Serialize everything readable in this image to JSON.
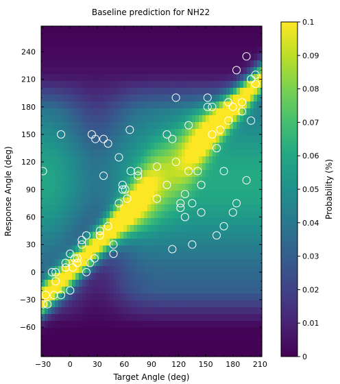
{
  "chart_data": {
    "type": "heatmap",
    "title": "Baseline prediction for NH22",
    "xlabel": "Target Angle (deg)",
    "ylabel": "Response Angle (deg)",
    "xlim": [
      -32,
      212
    ],
    "ylim": [
      -92,
      268
    ],
    "x_ticks": [
      -30,
      0,
      30,
      60,
      90,
      120,
      150,
      180,
      210
    ],
    "x_tick_labels": [
      "−30",
      "0",
      "30",
      "60",
      "90",
      "120",
      "150",
      "180",
      "210"
    ],
    "y_ticks": [
      -60,
      -30,
      0,
      30,
      60,
      90,
      120,
      150,
      180,
      210,
      240
    ],
    "y_tick_labels": [
      "−60",
      "−30",
      "0",
      "30",
      "60",
      "90",
      "120",
      "150",
      "180",
      "210",
      "240"
    ],
    "colormap": "viridis",
    "colorbar": {
      "label": "Probability (%)",
      "range": [
        0,
        0.1
      ],
      "ticks": [
        0,
        0.01,
        0.02,
        0.03,
        0.04,
        0.05,
        0.06,
        0.07,
        0.08,
        0.09,
        0.1
      ],
      "tick_labels": [
        "0",
        "0.01",
        "0.02",
        "0.03",
        "0.04",
        "0.05",
        "0.06",
        "0.07",
        "0.08",
        "0.09",
        "0.1"
      ]
    },
    "scatter_points": [
      {
        "x": -30,
        "y": 110
      },
      {
        "x": -30,
        "y": -35
      },
      {
        "x": -27,
        "y": -25
      },
      {
        "x": -25,
        "y": -35
      },
      {
        "x": -20,
        "y": 0
      },
      {
        "x": -18,
        "y": -25
      },
      {
        "x": -16,
        "y": 0
      },
      {
        "x": -16,
        "y": -10
      },
      {
        "x": -10,
        "y": 150
      },
      {
        "x": -10,
        "y": -25
      },
      {
        "x": -5,
        "y": 10
      },
      {
        "x": -5,
        "y": 5
      },
      {
        "x": 0,
        "y": 20
      },
      {
        "x": 0,
        "y": -20
      },
      {
        "x": 3,
        "y": 5
      },
      {
        "x": 5,
        "y": 15
      },
      {
        "x": 8,
        "y": 15
      },
      {
        "x": 8,
        "y": 10
      },
      {
        "x": 13,
        "y": 30
      },
      {
        "x": 13,
        "y": 35
      },
      {
        "x": 18,
        "y": 40
      },
      {
        "x": 18,
        "y": 0
      },
      {
        "x": 22,
        "y": 10
      },
      {
        "x": 24,
        "y": 150
      },
      {
        "x": 28,
        "y": 145
      },
      {
        "x": 27,
        "y": 15
      },
      {
        "x": 33,
        "y": 45
      },
      {
        "x": 33,
        "y": 40
      },
      {
        "x": 37,
        "y": 105
      },
      {
        "x": 37,
        "y": 145
      },
      {
        "x": 42,
        "y": 140
      },
      {
        "x": 42,
        "y": 50
      },
      {
        "x": 48,
        "y": 30
      },
      {
        "x": 48,
        "y": 20
      },
      {
        "x": 54,
        "y": 125
      },
      {
        "x": 54,
        "y": 75
      },
      {
        "x": 58,
        "y": 95
      },
      {
        "x": 58,
        "y": 90
      },
      {
        "x": 61,
        "y": 90
      },
      {
        "x": 63,
        "y": 80
      },
      {
        "x": 66,
        "y": 155
      },
      {
        "x": 67,
        "y": 110
      },
      {
        "x": 75,
        "y": 110
      },
      {
        "x": 75,
        "y": 105
      },
      {
        "x": 96,
        "y": 115
      },
      {
        "x": 96,
        "y": 80
      },
      {
        "x": 107,
        "y": 150
      },
      {
        "x": 107,
        "y": 95
      },
      {
        "x": 113,
        "y": 145
      },
      {
        "x": 113,
        "y": 25
      },
      {
        "x": 117,
        "y": 190
      },
      {
        "x": 117,
        "y": 120
      },
      {
        "x": 122,
        "y": 75
      },
      {
        "x": 122,
        "y": 70
      },
      {
        "x": 127,
        "y": 85
      },
      {
        "x": 127,
        "y": 60
      },
      {
        "x": 131,
        "y": 160
      },
      {
        "x": 131,
        "y": 110
      },
      {
        "x": 135,
        "y": 75
      },
      {
        "x": 135,
        "y": 30
      },
      {
        "x": 141,
        "y": 110
      },
      {
        "x": 145,
        "y": 95
      },
      {
        "x": 145,
        "y": 65
      },
      {
        "x": 152,
        "y": 190
      },
      {
        "x": 152,
        "y": 180
      },
      {
        "x": 157,
        "y": 180
      },
      {
        "x": 157,
        "y": 150
      },
      {
        "x": 162,
        "y": 135
      },
      {
        "x": 162,
        "y": 40
      },
      {
        "x": 166,
        "y": 155
      },
      {
        "x": 170,
        "y": 110
      },
      {
        "x": 170,
        "y": 50
      },
      {
        "x": 175,
        "y": 185
      },
      {
        "x": 175,
        "y": 165
      },
      {
        "x": 180,
        "y": 180
      },
      {
        "x": 180,
        "y": 65
      },
      {
        "x": 184,
        "y": 220
      },
      {
        "x": 184,
        "y": 75
      },
      {
        "x": 190,
        "y": 185
      },
      {
        "x": 190,
        "y": 175
      },
      {
        "x": 195,
        "y": 235
      },
      {
        "x": 195,
        "y": 100
      },
      {
        "x": 200,
        "y": 210
      },
      {
        "x": 200,
        "y": 165
      },
      {
        "x": 205,
        "y": 215
      },
      {
        "x": 205,
        "y": 205
      }
    ]
  }
}
